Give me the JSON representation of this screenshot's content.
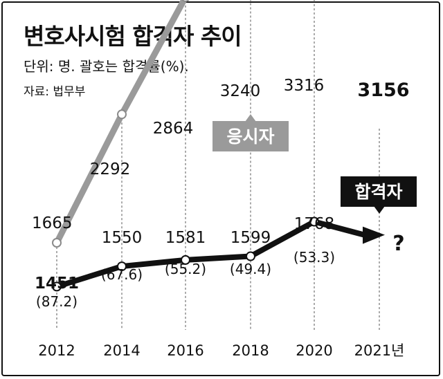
{
  "title": "변호사시험 합격자 추이",
  "unit_note": "단위: 명. 괄호는 합격률(%).",
  "source": "자료: 법무부",
  "chart_data": {
    "type": "line",
    "title": "변호사시험 합격자 추이",
    "x": [
      "2012",
      "2014",
      "2016",
      "2018",
      "2020",
      "2021년"
    ],
    "series": [
      {
        "name": "응시자",
        "values": [
          1665,
          2292,
          2864,
          3240,
          3316,
          3156
        ],
        "color": "#9a9a9a"
      },
      {
        "name": "합격자",
        "values": [
          1451,
          1550,
          1581,
          1599,
          1768,
          null
        ],
        "pass_rates": [
          "(87.2)",
          "(67.6)",
          "(55.2)",
          "(49.4)",
          "(53.3)",
          ""
        ],
        "pending_label": "?",
        "color": "#111111"
      }
    ],
    "grid": false,
    "legend": "inline labels"
  }
}
